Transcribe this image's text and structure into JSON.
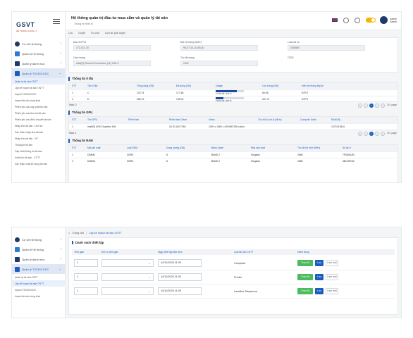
{
  "app": {
    "logo_text": "GSVT",
    "logo_sub": "HỆ THỐNG QUẢN LÝ",
    "user_name": "Admin",
    "user_role": "Admin",
    "brand_color": "#1a5dbf"
  },
  "sidebar": {
    "items": [
      {
        "label": "Cơ sở hệ thống",
        "icon": "dot-icon"
      },
      {
        "label": "Quản trị hệ thống",
        "icon": "tools-icon"
      },
      {
        "label": "Quản lý danh mục",
        "icon": "grid-icon"
      },
      {
        "label": "Quản lý TSCĐ/CCDC",
        "icon": "box-icon"
      }
    ],
    "sub_items": [
      "Quản lý tài sản CNTT",
      "Lập kế hoạch tài sản CNTT",
      "Import TSCĐ/CCDC",
      "Import tài sản công khai",
      "Phiếu yêu cầu cấp phát tài sản",
      "Phiếu yêu cầu thu hồi tài sản",
      "Phiếu yêu cầu điều chuyển tài sản",
      "Nhập kho tài sản - Lịch sử",
      "Xác nhận nhập kho tài sản",
      "Nhập kho tài sản - NT",
      "Thống kê tài sản",
      "Cập nhật thông tin tài sản",
      "Xuất kho tài sản - CCTT",
      "Xác nhận xuất sử dụng tài sản"
    ]
  },
  "screen1": {
    "title": "Hệ thống quản trị đầu tư mua sắm và quản lý tài sản",
    "subtitle": "Thông tin thiết bị",
    "toolbar": [
      "Lưu",
      "Duyệt",
      "Từ chối",
      "Lịch sử phê duyệt"
    ],
    "fields": [
      {
        "label": "Địa chỉ IPv4",
        "value": "172.20.2.30"
      },
      {
        "label": "Địa chỉ vật lý (MAC)",
        "value": "98-E7-43-1D-6B-B1"
      },
      {
        "label": "Loại mã hồ",
        "value": "0350580"
      },
      {
        "label": "Card mạng",
        "value": "Intel(R) Ethernet Connection (11) I219-V"
      },
      {
        "label": "Tốc độ mạng",
        "value": "1000"
      },
      {
        "label": "OS32",
        "value": ""
      }
    ],
    "disk": {
      "title": "Thông tin ổ đĩa",
      "columns": [
        "STT",
        "Tên ổ đĩa",
        "Tổng dung (GB)",
        "Đã dùng (GB)",
        "Usage",
        "Còn trống (GB)",
        "Kiểu hệ thống tệp tin"
      ],
      "rows": [
        {
          "stt": "1",
          "name": "C",
          "total": "232.74",
          "used": "177.66",
          "usage_label": "177.66 GB / 232.74",
          "usage_pct": 76,
          "free": "55.08",
          "fs": "NTFS"
        },
        {
          "stt": "2",
          "name": "D",
          "total": "465.75",
          "used": "128.02",
          "usage_label": "128.02 GB / 465.75",
          "usage_pct": 27,
          "free": "337.74",
          "fs": "NTFS"
        }
      ],
      "total": "Total: 2"
    },
    "gpu": {
      "title": "Thông tin GPU",
      "columns": [
        "STT",
        "Tên GPU",
        "Phiên bản",
        "Phiên bản Driver",
        "Video",
        "Tốc độ bộ xử lý (MHz)",
        "Compute Units",
        "RAM (B)"
      ],
      "rows": [
        {
          "stt": "1",
          "name": "Intel(R) UHD Graphics 630",
          "version": "",
          "driver": "26.20.100.7263",
          "video": "1920 x 1080 x 4294967296 colors",
          "speed": "",
          "cu": "",
          "ram": "1073741824"
        }
      ],
      "total": "Total: 1"
    },
    "ram": {
      "title": "Thông tin RAM",
      "columns": [
        "STT",
        "Mã sản xuất",
        "Loại RAM",
        "Dung lượng (GB)",
        "Bank Label",
        "Nhà sản xuất",
        "Tốc độ bộ nhớ (MHz)",
        "Số sê-ri"
      ],
      "rows": [
        {
          "stt": "1",
          "code": "DIMM4",
          "type": "DDR4",
          "size": "8",
          "bank": "BANK 2",
          "maker": "Kingston",
          "speed": "2666",
          "serial": "7F5D0A2B"
        },
        {
          "stt": "2",
          "code": "DIMM4",
          "type": "DDR4",
          "size": "8",
          "bank": "BANK 2",
          "maker": "Kingston",
          "speed": "2666",
          "serial": "3BC00E9A"
        }
      ]
    },
    "pager": {
      "pages": [
        "«",
        "‹",
        "1",
        "›",
        "»"
      ],
      "current": "1",
      "size": "10 / page"
    }
  },
  "screen2": {
    "breadcrumb": {
      "home": "Trang chủ",
      "current": "Lập kế hoạch tài sản CNTT"
    },
    "title": "Danh sách thiết lập",
    "columns": [
      "Thời gian",
      "Đơn vị thời gian",
      "Ngày thiết lập tiếp theo",
      "Loại tài sản CNTT",
      "Hành động"
    ],
    "rows": [
      {
        "time": "1",
        "unit": "",
        "next_date": "14/11/2025 11:00",
        "asset": "Computer"
      },
      {
        "time": "1",
        "unit": "",
        "next_date": "14/11/2025 11:00",
        "asset": "Printer"
      },
      {
        "time": "1",
        "unit": "",
        "next_date": "14/11/2025 11:00",
        "asset": "Landline Telephone"
      }
    ],
    "actions": {
      "run": "Thực thi",
      "save": "Lưu",
      "refresh": "Làm mới"
    }
  }
}
